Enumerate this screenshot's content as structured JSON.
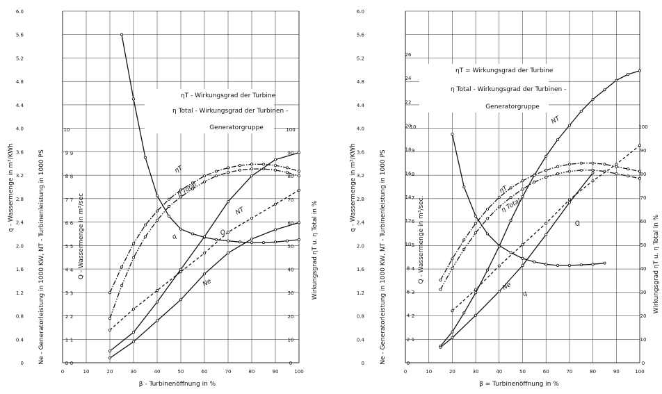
{
  "chart_data": [
    {
      "type": "line",
      "x": [
        20,
        25,
        30,
        35,
        40,
        45,
        50,
        55,
        60,
        65,
        70,
        75,
        80,
        85,
        90,
        95,
        100
      ],
      "xlabel": "β - Turbinenöffnung in %",
      "xticks": [
        "0",
        "10",
        "20",
        "30",
        "40",
        "50",
        "60",
        "70",
        "80",
        "90",
        "100"
      ],
      "xlim": [
        0,
        100
      ],
      "ylabels": {
        "q": "q - Wassermenge in m³/KWh",
        "n": "Ne - Generatorleistung in 1000 KW, NT - Turbinenleistung in 1000 PS",
        "Q": "Q - Wassermenge in m³/sec",
        "eta": "Wirkungsgrad ηT u. η Total in %"
      },
      "ticks": {
        "q": [
          "0",
          "0.4",
          "0.8",
          "1.2",
          "1.6",
          "2.0",
          "2.4",
          "2.8",
          "3.2",
          "3.6",
          "4.0",
          "4.4",
          "4.8",
          "5.2",
          "5.6",
          "6.0"
        ],
        "n": [
          "0",
          "1",
          "2",
          "3",
          "4",
          "5",
          "6",
          "7",
          "8",
          "9",
          "10"
        ],
        "Q": [
          "0",
          "1",
          "2",
          "3",
          "4",
          "5",
          "6",
          "7",
          "8",
          "9"
        ],
        "eta": [
          "0",
          "10",
          "20",
          "30",
          "40",
          "50",
          "60",
          "70",
          "80",
          "90",
          "100"
        ]
      },
      "series": [
        {
          "name": "q",
          "scale": "q",
          "style": "solid",
          "x": [
            25,
            30,
            35,
            40,
            45,
            50,
            55,
            60,
            65,
            70,
            75,
            80,
            85,
            90,
            95,
            100
          ],
          "values": [
            5.6,
            4.5,
            3.5,
            2.85,
            2.5,
            2.28,
            2.2,
            2.14,
            2.1,
            2.08,
            2.06,
            2.05,
            2.05,
            2.06,
            2.08,
            2.1
          ]
        },
        {
          "name": "ηT",
          "scale": "eta",
          "style": "dashdot",
          "x": [
            20,
            25,
            30,
            35,
            40,
            45,
            50,
            55,
            60,
            65,
            70,
            75,
            80,
            85,
            90,
            95,
            100
          ],
          "values": [
            30,
            41,
            51,
            59,
            65,
            70,
            74,
            77,
            80,
            82,
            83.5,
            84.5,
            85,
            85,
            84.5,
            83.5,
            82
          ]
        },
        {
          "name": "η Total",
          "scale": "eta",
          "style": "dashdotdot",
          "x": [
            20,
            25,
            30,
            35,
            40,
            45,
            50,
            55,
            60,
            65,
            70,
            75,
            80,
            85,
            90,
            95,
            100
          ],
          "values": [
            19,
            33,
            45,
            54,
            61,
            67,
            71,
            74.5,
            77.5,
            80,
            81.5,
            82.5,
            83,
            83,
            82.5,
            81.5,
            80
          ]
        },
        {
          "name": "NT",
          "scale": "n",
          "style": "solid",
          "x": [
            20,
            30,
            40,
            50,
            60,
            70,
            80,
            90,
            100
          ],
          "values": [
            0.5,
            1.3,
            2.6,
            4.0,
            5.4,
            6.9,
            8.0,
            8.7,
            9.0
          ]
        },
        {
          "name": "Q",
          "scale": "Q",
          "style": "dashed",
          "x": [
            20,
            30,
            40,
            50,
            60,
            70,
            80,
            90,
            100
          ],
          "values": [
            1.4,
            2.3,
            3.1,
            3.9,
            4.7,
            5.6,
            6.2,
            6.8,
            7.4
          ]
        },
        {
          "name": "Ne",
          "scale": "n",
          "style": "solid",
          "x": [
            20,
            30,
            40,
            50,
            60,
            70,
            80,
            90,
            100
          ],
          "values": [
            0.2,
            0.9,
            1.8,
            2.7,
            3.8,
            4.7,
            5.3,
            5.7,
            6.0
          ]
        }
      ],
      "annotations": [
        "ηT - Wirkungsgrad der Turbine",
        "η Total - Wirkungsgrad der Turbinen -",
        "Generatorgruppe"
      ],
      "grid": true
    },
    {
      "type": "line",
      "x": [
        15,
        20,
        25,
        30,
        35,
        40,
        45,
        50,
        55,
        60,
        65,
        70,
        75,
        80,
        85,
        90,
        95,
        100
      ],
      "xlabel": "β = Turbinenöffnung in %",
      "xticks": [
        "0",
        "10",
        "20",
        "30",
        "40",
        "50",
        "60",
        "70",
        "80",
        "90",
        "100"
      ],
      "xlim": [
        0,
        100
      ],
      "ylabels": {
        "q": "q - Wassermenge in m³/KWh",
        "n": "Ne - Generatorleistung in 1000 KW, NT - Turbinenleistung in 1000 PS",
        "Q": "Q - Wassermenge in m³/sec.",
        "eta": "Wirkungsgrad ηT u. η Total in %"
      },
      "ticks": {
        "q": [
          "0",
          "0.4",
          "0.8",
          "1.2",
          "1.6",
          "2.0",
          "2.4",
          "2.8",
          "3.2",
          "3.6",
          "4.0",
          "4.4",
          "4.8",
          "5.2",
          "5.6",
          "6.0"
        ],
        "n": [
          "0",
          "2",
          "4",
          "6",
          "8",
          "10",
          "12",
          "14",
          "16",
          "18",
          "20",
          "22",
          "24",
          "26"
        ],
        "Q": [
          "1",
          "2",
          "3",
          "4",
          "5",
          "6",
          "7",
          "8",
          "9",
          "10"
        ],
        "eta": [
          "0",
          "10",
          "20",
          "30",
          "40",
          "50",
          "60",
          "70",
          "80",
          "90",
          "100"
        ]
      },
      "series": [
        {
          "name": "q",
          "scale": "q",
          "style": "solid",
          "x": [
            20,
            25,
            30,
            35,
            40,
            45,
            50,
            55,
            60,
            65,
            70,
            75,
            80,
            85
          ],
          "values": [
            3.9,
            3.0,
            2.5,
            2.2,
            2.0,
            1.88,
            1.78,
            1.72,
            1.68,
            1.66,
            1.66,
            1.67,
            1.68,
            1.7
          ]
        },
        {
          "name": "ηT",
          "scale": "eta",
          "style": "dashdot",
          "x": [
            15,
            20,
            25,
            30,
            35,
            40,
            45,
            50,
            55,
            60,
            65,
            70,
            75,
            80,
            85,
            90,
            95,
            100
          ],
          "values": [
            35,
            44,
            52,
            59,
            65,
            70,
            74,
            77,
            79.5,
            81.5,
            83,
            84,
            84.5,
            84.5,
            84,
            83,
            82,
            81
          ]
        },
        {
          "name": "η Total",
          "scale": "eta",
          "style": "dashdotdot",
          "x": [
            15,
            20,
            25,
            30,
            35,
            40,
            45,
            50,
            55,
            60,
            65,
            70,
            75,
            80,
            85,
            90,
            95,
            100
          ],
          "values": [
            31,
            40,
            48,
            55,
            61,
            66,
            70,
            73.5,
            76.5,
            78.5,
            80,
            81,
            81.5,
            81.5,
            81,
            80,
            79,
            78
          ]
        },
        {
          "name": "NT",
          "scale": "n",
          "style": "solid",
          "x": [
            15,
            20,
            25,
            30,
            35,
            40,
            45,
            50,
            55,
            60,
            65,
            70,
            75,
            80,
            85,
            90,
            95,
            100
          ],
          "values": [
            1.4,
            2.6,
            4.2,
            5.9,
            7.8,
            9.8,
            12.0,
            14.0,
            15.8,
            17.4,
            18.8,
            20.0,
            21.2,
            22.2,
            23.0,
            23.8,
            24.3,
            24.6
          ]
        },
        {
          "name": "Q",
          "scale": "Q",
          "style": "dashed",
          "x": [
            20,
            30,
            40,
            50,
            60,
            70,
            80,
            90,
            100
          ],
          "values": [
            2.2,
            3.1,
            4.1,
            5.0,
            5.9,
            6.9,
            7.7,
            8.4,
            9.2
          ]
        },
        {
          "name": "Ne",
          "scale": "n",
          "style": "solid",
          "x": [
            15,
            20,
            30,
            40,
            50,
            60,
            70,
            80
          ],
          "values": [
            1.3,
            2.1,
            4.0,
            6.0,
            8.2,
            10.8,
            13.5,
            16.0
          ]
        }
      ],
      "annotations": [
        "ηT = Wirkungsgrad der Turbine",
        "η Total - Wirkungsgrad der Turbinen -",
        "Generatorgruppe"
      ],
      "grid": true
    }
  ]
}
